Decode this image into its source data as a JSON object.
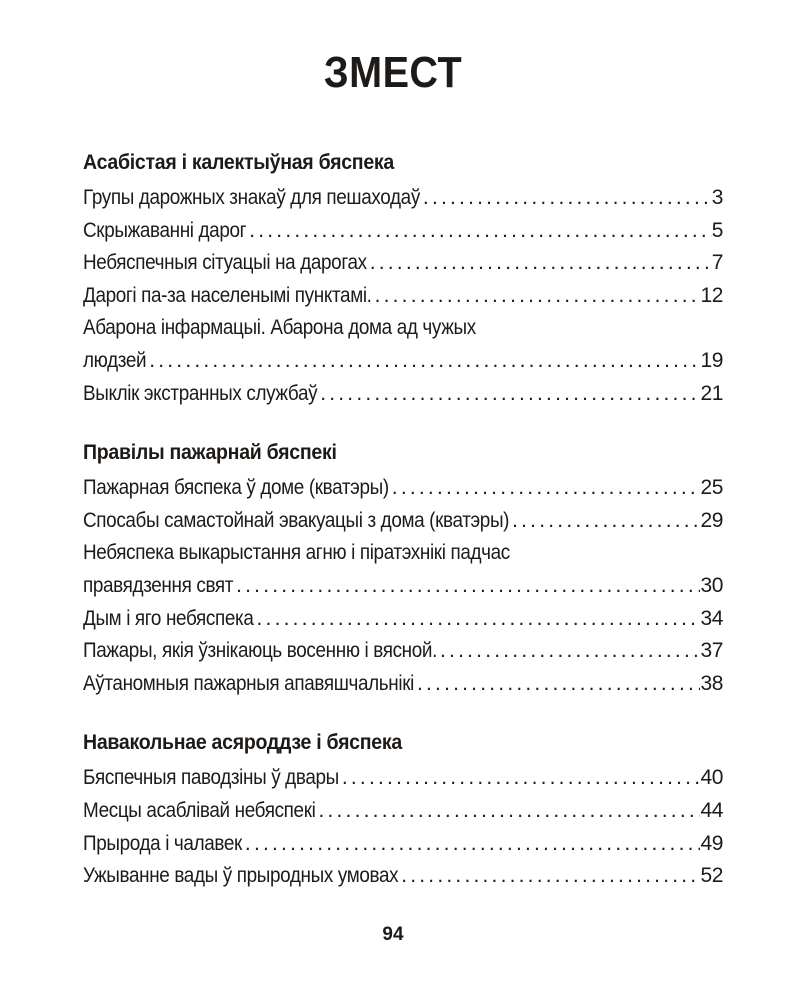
{
  "title": "ЗМЕСТ",
  "page_number": "94",
  "sections": [
    {
      "heading": "Асабістая і калектыўная бяспека",
      "entries": [
        {
          "lines": [
            "Групы дарожных знакаў для пешаходаў"
          ],
          "page": "3"
        },
        {
          "lines": [
            "Скрыжаванні дарог"
          ],
          "page": "5"
        },
        {
          "lines": [
            "Небяспечныя сітуацыі на дарогах"
          ],
          "page": "7"
        },
        {
          "lines": [
            "Дарогі па-за населенымі пунктамі."
          ],
          "page": "12"
        },
        {
          "lines": [
            "Абарона інфармацыі. Абарона дома ад чужых",
            "людзей"
          ],
          "page": "19"
        },
        {
          "lines": [
            "Выклік экстранных службаў"
          ],
          "page": "21"
        }
      ]
    },
    {
      "heading": "Правілы пажарнай бяспекі",
      "entries": [
        {
          "lines": [
            "Пажарная бяспека ў доме (кватэры)"
          ],
          "page": "25"
        },
        {
          "lines": [
            "Спосабы самастойнай эвакуацыі з дома (кватэры)"
          ],
          "page": "29"
        },
        {
          "lines": [
            "Небяспека выкарыстання агню і піратэхнікі падчас",
            "правядзення свят"
          ],
          "page": "30"
        },
        {
          "lines": [
            "Дым і яго небяспека"
          ],
          "page": "34"
        },
        {
          "lines": [
            "Пажары, якія ўзнікаюць восенню і вясной."
          ],
          "page": "37"
        },
        {
          "lines": [
            "Аўтаномныя пажарныя апавяшчальнікі"
          ],
          "page": "38"
        }
      ]
    },
    {
      "heading": "Навакольнае асяроддзе і бяспека",
      "entries": [
        {
          "lines": [
            "Бяспечныя паводзіны ў двары"
          ],
          "page": "40"
        },
        {
          "lines": [
            "Месцы асаблівай небяспекі"
          ],
          "page": "44"
        },
        {
          "lines": [
            "Прырода і чалавек"
          ],
          "page": "49"
        },
        {
          "lines": [
            "Ужыванне вады ў прыродных умовах"
          ],
          "page": "52"
        }
      ]
    }
  ]
}
